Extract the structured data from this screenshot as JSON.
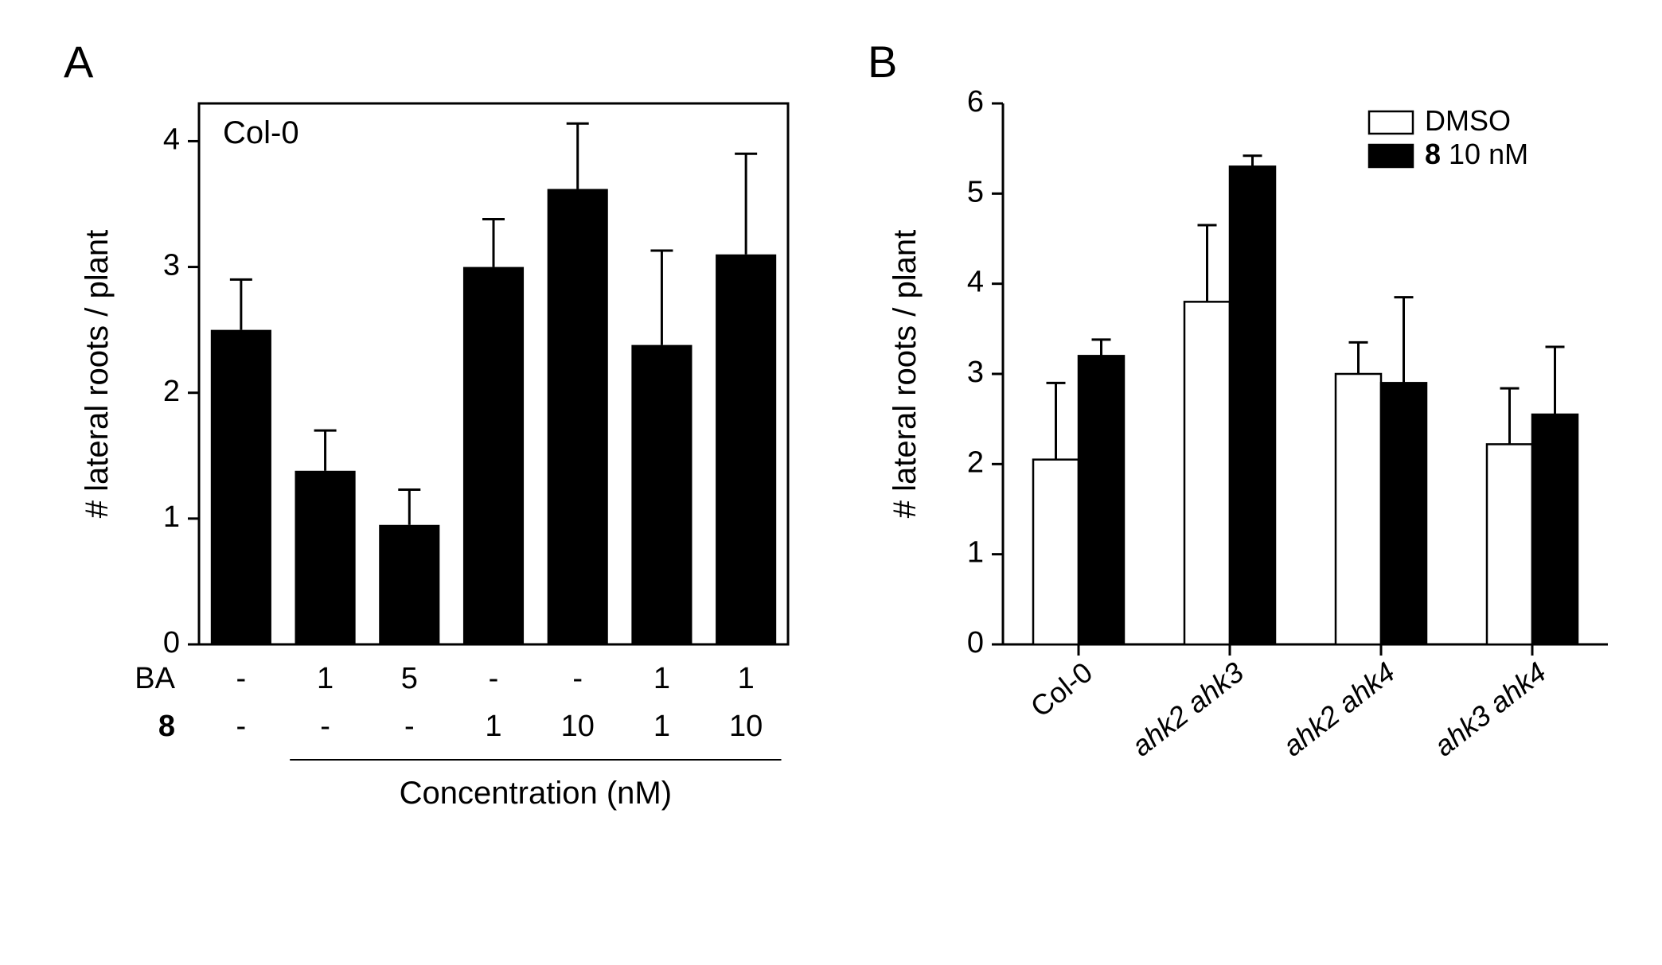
{
  "panelA": {
    "label": "A",
    "type": "bar",
    "inset_label": "Col-0",
    "ylabel": "# lateral roots / plant",
    "ylim": [
      0,
      4.3
    ],
    "yticks": [
      0,
      1,
      2,
      3,
      4
    ],
    "bars": [
      {
        "value": 2.5,
        "err": 0.4,
        "BA": "-",
        "c8": "-"
      },
      {
        "value": 1.38,
        "err": 0.32,
        "BA": "1",
        "c8": "-"
      },
      {
        "value": 0.95,
        "err": 0.28,
        "BA": "5",
        "c8": "-"
      },
      {
        "value": 3.0,
        "err": 0.38,
        "BA": "-",
        "c8": "1"
      },
      {
        "value": 3.62,
        "err": 0.52,
        "BA": "-",
        "c8": "10"
      },
      {
        "value": 2.38,
        "err": 0.75,
        "BA": "1",
        "c8": "1"
      },
      {
        "value": 3.1,
        "err": 0.8,
        "BA": "1",
        "c8": "10"
      }
    ],
    "row_labels": {
      "BA": "BA",
      "c8": "8"
    },
    "xaxis_caption": "Concentration (nM)",
    "bar_color": "#000000",
    "axis_color": "#000000",
    "label_fontsize": 40,
    "tick_fontsize": 38,
    "inset_fontsize": 40,
    "row_label_fontsize": 38,
    "caption_fontsize": 40
  },
  "panelB": {
    "label": "B",
    "type": "grouped-bar",
    "ylabel": "# lateral roots / plant",
    "ylim": [
      0,
      6
    ],
    "yticks": [
      0,
      1,
      2,
      3,
      4,
      5,
      6
    ],
    "groups": [
      {
        "name": "Col-0",
        "dmso": 2.05,
        "dmso_err": 0.85,
        "c8": 3.2,
        "c8_err": 0.18
      },
      {
        "name": "ahk2 ahk3",
        "dmso": 3.8,
        "dmso_err": 0.85,
        "c8": 5.3,
        "c8_err": 0.12
      },
      {
        "name": "ahk2 ahk4",
        "dmso": 3.0,
        "dmso_err": 0.35,
        "c8": 2.9,
        "c8_err": 0.95
      },
      {
        "name": "ahk3 ahk4",
        "dmso": 2.22,
        "dmso_err": 0.62,
        "c8": 2.55,
        "c8_err": 0.75
      }
    ],
    "legend": {
      "dmso": "DMSO",
      "c8": "8   10 nM"
    },
    "dmso_fill": "#ffffff",
    "c8_fill": "#000000",
    "stroke": "#000000",
    "label_fontsize": 40,
    "tick_fontsize": 38,
    "legend_fontsize": 36,
    "group_fontsize": 36
  },
  "colors": {
    "bg": "#ffffff",
    "fg": "#000000"
  }
}
